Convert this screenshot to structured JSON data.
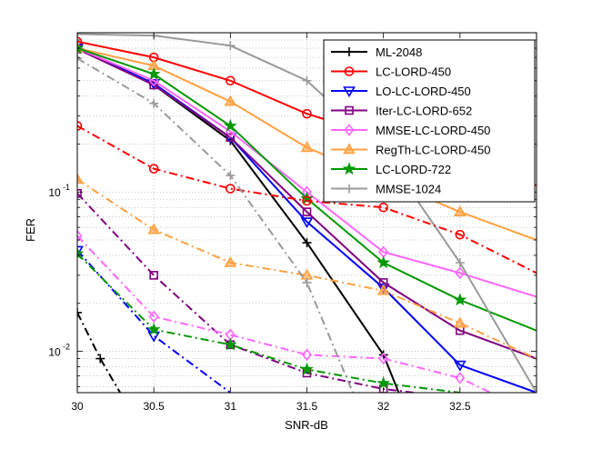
{
  "chart_data": {
    "type": "line",
    "xlabel": "SNR-dB",
    "ylabel": "FER",
    "xlim": [
      30,
      33
    ],
    "ylim": [
      0.0055,
      1.0
    ],
    "yscale": "log",
    "grid": true,
    "legend_position": "top-right",
    "x_ticks": [
      30,
      30.5,
      31,
      31.5,
      32,
      32.5
    ],
    "x_tick_labels": [
      "30",
      "30.5",
      "31",
      "31.5",
      "32",
      "32.5"
    ],
    "y_tick_labels": [
      {
        "value": 0.1,
        "base": "10",
        "exp": "-1"
      },
      {
        "value": 0.01,
        "base": "10",
        "exp": "-2"
      }
    ],
    "series": [
      {
        "name": "ML-2048",
        "color": "#000000",
        "marker": "plus",
        "style": "solid",
        "x": [
          30,
          30.5,
          31,
          31.5,
          32,
          32.1
        ],
        "y": [
          0.82,
          0.47,
          0.21,
          0.048,
          0.0095,
          0.0055
        ]
      },
      {
        "name": "LC-LORD-450",
        "color": "#ff0000",
        "marker": "circle",
        "style": "solid",
        "x": [
          30,
          30.5,
          31,
          31.5,
          32,
          32.5,
          33
        ],
        "y": [
          0.88,
          0.7,
          0.5,
          0.31,
          0.22,
          0.15,
          0.11
        ]
      },
      {
        "name": "LO-LC-LORD-450",
        "color": "#0000ff",
        "marker": "triangle-down",
        "style": "solid",
        "x": [
          30,
          30.5,
          31,
          31.5,
          32,
          32.5,
          33
        ],
        "y": [
          0.8,
          0.48,
          0.22,
          0.065,
          0.025,
          0.0082,
          0.0055
        ]
      },
      {
        "name": "Iter-LC-LORD-652",
        "color": "#800080",
        "marker": "square",
        "style": "solid",
        "x": [
          30,
          30.5,
          31,
          31.5,
          32,
          32.5,
          33
        ],
        "y": [
          0.79,
          0.47,
          0.22,
          0.075,
          0.027,
          0.0135,
          0.009
        ]
      },
      {
        "name": "MMSE-LC-LORD-450",
        "color": "#ff66ff",
        "marker": "diamond",
        "style": "solid",
        "x": [
          30,
          30.5,
          31,
          31.5,
          32,
          32.5,
          33
        ],
        "y": [
          0.8,
          0.5,
          0.24,
          0.1,
          0.042,
          0.031,
          0.022
        ]
      },
      {
        "name": "RegTh-LC-LORD-450",
        "color": "#ffa040",
        "marker": "triangle-up",
        "style": "solid",
        "x": [
          30,
          30.5,
          31,
          31.5,
          32,
          32.5,
          33
        ],
        "y": [
          0.8,
          0.62,
          0.37,
          0.19,
          0.12,
          0.075,
          0.05
        ]
      },
      {
        "name": "LC-LORD-722",
        "color": "#009900",
        "marker": "star",
        "style": "solid",
        "x": [
          30,
          30.5,
          31,
          31.5,
          32,
          32.5,
          33
        ],
        "y": [
          0.8,
          0.55,
          0.26,
          0.091,
          0.036,
          0.021,
          0.0135
        ]
      },
      {
        "name": "MMSE-1024",
        "color": "#999999",
        "marker": "plus",
        "style": "solid",
        "x": [
          30,
          30.5,
          31,
          31.5,
          32,
          32.5,
          33
        ],
        "y": [
          0.98,
          0.96,
          0.83,
          0.5,
          0.18,
          0.036,
          0.0055
        ]
      },
      {
        "name": "",
        "color": "#000000",
        "marker": "plus",
        "style": "dashdot",
        "x": [
          30,
          30.15,
          30.28
        ],
        "y": [
          0.0175,
          0.009,
          0.0055
        ]
      },
      {
        "name": "",
        "color": "#ff0000",
        "marker": "circle",
        "style": "dashdot",
        "x": [
          30,
          30.5,
          31,
          31.5,
          32,
          32.5,
          33
        ],
        "y": [
          0.26,
          0.14,
          0.105,
          0.088,
          0.08,
          0.054,
          0.031
        ]
      },
      {
        "name": "",
        "color": "#0000ff",
        "marker": "triangle-down",
        "style": "dashdot",
        "x": [
          30,
          30.5,
          31
        ],
        "y": [
          0.043,
          0.0125,
          0.0055
        ]
      },
      {
        "name": "",
        "color": "#800080",
        "marker": "square",
        "style": "dashdot",
        "x": [
          30,
          30.5,
          31,
          31.5,
          32,
          32.2
        ],
        "y": [
          0.098,
          0.03,
          0.011,
          0.0073,
          0.0058,
          0.0055
        ]
      },
      {
        "name": "",
        "color": "#ff66ff",
        "marker": "diamond",
        "style": "dashdot",
        "x": [
          30,
          30.5,
          31,
          31.5,
          32,
          32.5,
          32.7
        ],
        "y": [
          0.053,
          0.0165,
          0.0127,
          0.0095,
          0.009,
          0.0068,
          0.0055
        ]
      },
      {
        "name": "",
        "color": "#ffa040",
        "marker": "triangle-up",
        "style": "dashdot",
        "x": [
          30,
          30.5,
          31,
          31.5,
          32,
          32.5,
          33
        ],
        "y": [
          0.12,
          0.058,
          0.036,
          0.03,
          0.024,
          0.015,
          0.009
        ]
      },
      {
        "name": "",
        "color": "#009900",
        "marker": "star",
        "style": "dashdot",
        "x": [
          30,
          30.5,
          31,
          31.5,
          32,
          32.5
        ],
        "y": [
          0.041,
          0.0137,
          0.011,
          0.0077,
          0.0063,
          0.0055
        ]
      },
      {
        "name": "",
        "color": "#999999",
        "marker": "plus",
        "style": "dashdot",
        "x": [
          30,
          30.5,
          31,
          31.5,
          31.8
        ],
        "y": [
          0.69,
          0.36,
          0.127,
          0.027,
          0.0055
        ]
      }
    ]
  }
}
